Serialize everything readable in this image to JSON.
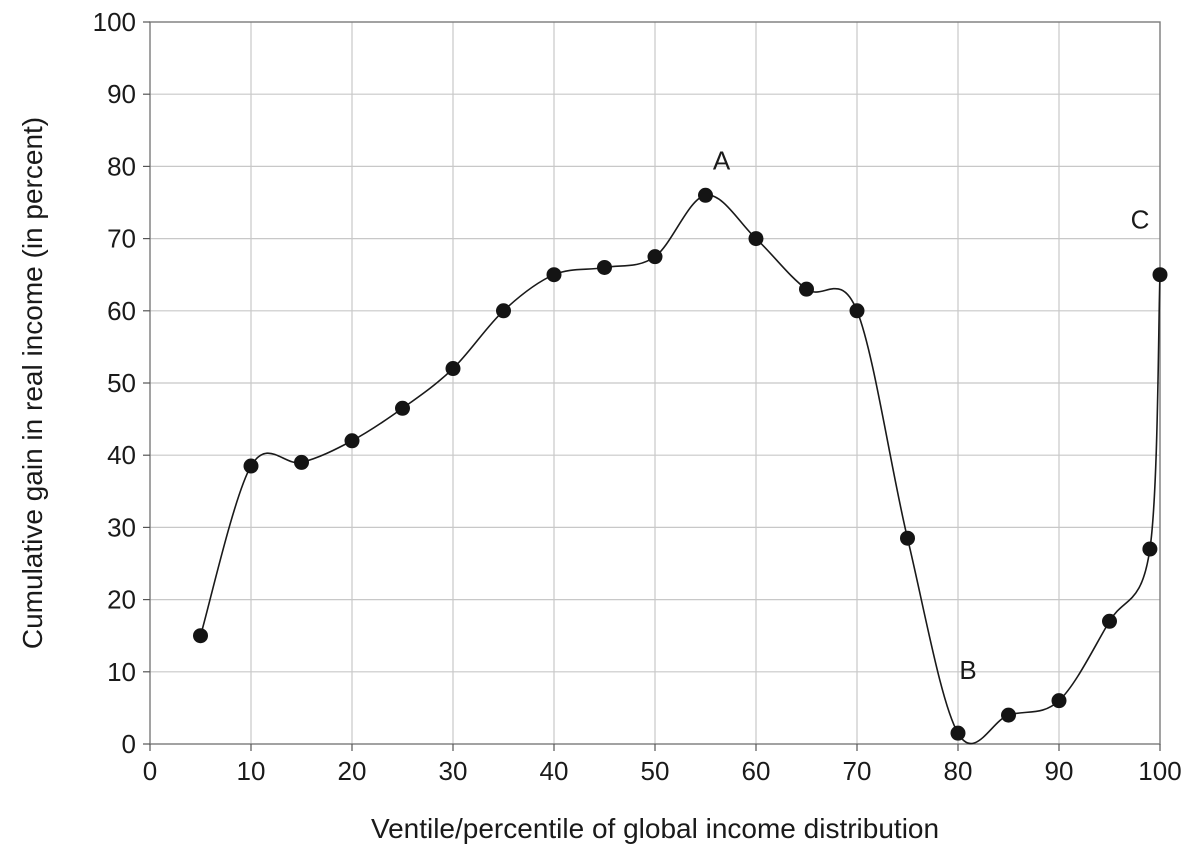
{
  "chart_data": {
    "type": "line",
    "title": "",
    "xlabel": "Ventile/percentile of global income distribution",
    "ylabel": "Cumulative gain in real income (in percent)",
    "xlim": [
      0,
      100
    ],
    "ylim": [
      0,
      100
    ],
    "xticks": [
      0,
      10,
      20,
      30,
      40,
      50,
      60,
      70,
      80,
      90,
      100
    ],
    "yticks": [
      0,
      10,
      20,
      30,
      40,
      50,
      60,
      70,
      80,
      90,
      100
    ],
    "grid": true,
    "x": [
      5,
      10,
      15,
      20,
      25,
      30,
      35,
      40,
      45,
      50,
      55,
      60,
      65,
      70,
      75,
      80,
      85,
      90,
      95,
      99,
      100
    ],
    "y": [
      15,
      38.5,
      39,
      42,
      46.5,
      52,
      60,
      65,
      66,
      67.5,
      76,
      70,
      63,
      60,
      28.5,
      1.5,
      4,
      6,
      17,
      27,
      65
    ],
    "annotations": [
      {
        "text": "A",
        "x": 55,
        "y": 76
      },
      {
        "text": "B",
        "x": 80,
        "y": 1.5
      },
      {
        "text": "C",
        "x": 100,
        "y": 65
      }
    ]
  }
}
